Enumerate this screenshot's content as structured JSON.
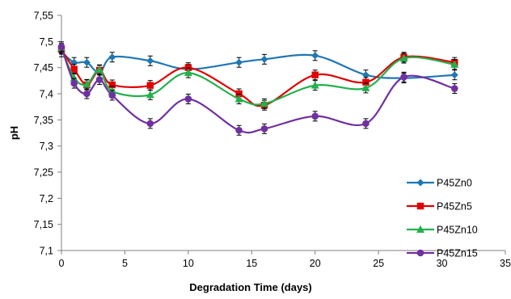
{
  "chart_data": {
    "type": "line",
    "xlabel": "Degradation Time (days)",
    "ylabel": "pH",
    "xlim": [
      0,
      35
    ],
    "ylim": [
      7.1,
      7.55
    ],
    "x_ticks": [
      0,
      5,
      10,
      15,
      20,
      25,
      30,
      35
    ],
    "y_ticks": [
      7.1,
      7.15,
      7.2,
      7.25,
      7.3,
      7.35,
      7.4,
      7.45,
      7.5,
      7.55
    ],
    "x_tick_labels": [
      "0",
      "5",
      "10",
      "15",
      "20",
      "25",
      "30",
      "35"
    ],
    "y_tick_labels": [
      "7,1",
      "7,15",
      "7,2",
      "7,25",
      "7,3",
      "7,35",
      "7,4",
      "7,45",
      "7,5",
      "7,55"
    ],
    "grid": false,
    "legend_position": "bottom-right",
    "x": [
      0,
      1,
      2,
      3,
      4,
      7,
      10,
      14,
      16,
      20,
      24,
      27,
      31
    ],
    "series": [
      {
        "name": "P45Zn0",
        "color": "#1F77B4",
        "marker": "diamond",
        "values": [
          7.48,
          7.46,
          7.46,
          7.44,
          7.47,
          7.463,
          7.447,
          7.46,
          7.466,
          7.473,
          7.436,
          7.43,
          7.436
        ]
      },
      {
        "name": "P45Zn5",
        "color": "#E00000",
        "marker": "square",
        "values": [
          7.485,
          7.447,
          7.417,
          7.445,
          7.417,
          7.416,
          7.45,
          7.4,
          7.378,
          7.436,
          7.422,
          7.47,
          7.46
        ]
      },
      {
        "name": "P45Zn10",
        "color": "#22B14C",
        "marker": "triangle",
        "values": [
          7.487,
          7.43,
          7.418,
          7.446,
          7.405,
          7.398,
          7.44,
          7.39,
          7.381,
          7.416,
          7.411,
          7.468,
          7.456
        ]
      },
      {
        "name": "P45Zn15",
        "color": "#7030A0",
        "marker": "circle",
        "values": [
          7.49,
          7.42,
          7.4,
          7.427,
          7.397,
          7.343,
          7.39,
          7.33,
          7.333,
          7.357,
          7.343,
          7.432,
          7.41
        ]
      }
    ]
  }
}
